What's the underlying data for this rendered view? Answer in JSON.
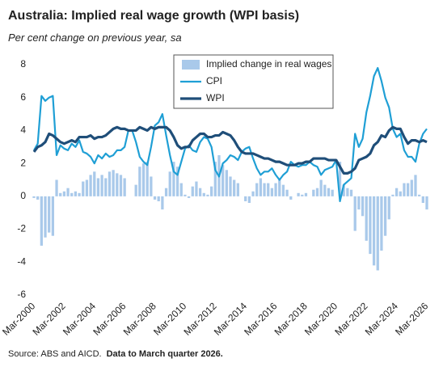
{
  "chart_data": {
    "type": "combo",
    "title": "Australia: Implied real wage growth (WPI basis)",
    "subtitle": "Per cent change on previous year, sa",
    "source": "Source: ABS and AICD.",
    "note": "Data to March quarter 2026.",
    "categories": [
      "Mar-2000",
      null,
      null,
      null,
      null,
      null,
      null,
      null,
      "Mar-2002",
      null,
      null,
      null,
      null,
      null,
      null,
      null,
      "Mar-2004",
      null,
      null,
      null,
      null,
      null,
      null,
      null,
      "Mar-2006",
      null,
      null,
      null,
      null,
      null,
      null,
      null,
      "Mar-2008",
      null,
      null,
      null,
      null,
      null,
      null,
      null,
      "Mar-2010",
      null,
      null,
      null,
      null,
      null,
      null,
      null,
      "Mar-2012",
      null,
      null,
      null,
      null,
      null,
      null,
      null,
      "Mar-2014",
      null,
      null,
      null,
      null,
      null,
      null,
      null,
      "Mar-2016",
      null,
      null,
      null,
      null,
      null,
      null,
      null,
      "Mar-2018",
      null,
      null,
      null,
      null,
      null,
      null,
      null,
      "Mar-2020",
      null,
      null,
      null,
      null,
      null,
      null,
      null,
      "Mar-2022",
      null,
      null,
      null,
      null,
      null,
      null,
      null,
      "Mar-2024",
      null,
      null,
      null,
      null,
      null,
      null,
      null,
      "Mar-2026"
    ],
    "ylim": [
      -6,
      8
    ],
    "yticks": [
      -6,
      -4,
      -2,
      0,
      2,
      4,
      6,
      8
    ],
    "series": [
      {
        "name": "Implied change in real wages",
        "type": "bar",
        "color": "#a9c9ea",
        "values": [
          -0.1,
          -0.2,
          -3.0,
          -2.5,
          -2.2,
          -2.4,
          1.0,
          0.2,
          0.3,
          0.5,
          0.2,
          0.3,
          0.2,
          0.9,
          1.0,
          1.3,
          1.5,
          1.1,
          1.3,
          1.1,
          1.5,
          1.6,
          1.4,
          1.3,
          1.1,
          0.0,
          0.0,
          0.7,
          1.8,
          2.0,
          2.1,
          1.2,
          -0.2,
          -0.3,
          -0.8,
          0.5,
          1.5,
          2.1,
          1.8,
          0.8,
          0.1,
          -0.1,
          0.6,
          0.9,
          0.5,
          0.2,
          0.1,
          0.6,
          2.1,
          2.5,
          1.9,
          1.6,
          1.2,
          1.0,
          0.8,
          0.0,
          -0.3,
          -0.4,
          0.3,
          0.8,
          1.1,
          0.8,
          0.8,
          0.5,
          0.8,
          1.1,
          0.7,
          0.4,
          -0.2,
          0.0,
          0.2,
          0.1,
          0.2,
          0.0,
          0.4,
          0.5,
          1.0,
          0.7,
          0.5,
          0.4,
          0.0,
          2.1,
          0.7,
          0.5,
          0.4,
          -2.1,
          -0.8,
          -1.2,
          -2.7,
          -3.5,
          -4.2,
          -4.5,
          -3.3,
          -2.4,
          -1.4,
          0.1,
          0.5,
          0.3,
          0.8,
          0.8,
          1.0,
          1.3,
          0.1,
          -0.4,
          -0.8
        ]
      },
      {
        "name": "CPI",
        "type": "line",
        "color": "#1f9fd5",
        "values": [
          2.8,
          3.2,
          6.1,
          5.8,
          6.0,
          6.1,
          2.5,
          3.1,
          2.9,
          2.8,
          3.2,
          3.0,
          3.4,
          2.7,
          2.6,
          2.4,
          2.0,
          2.5,
          2.3,
          2.6,
          2.4,
          2.5,
          2.8,
          2.8,
          3.0,
          4.0,
          4.0,
          3.3,
          2.4,
          2.1,
          1.9,
          3.0,
          4.3,
          4.5,
          5.0,
          3.7,
          2.5,
          1.5,
          1.3,
          2.1,
          2.9,
          3.1,
          2.8,
          2.7,
          3.3,
          3.6,
          3.5,
          3.0,
          1.6,
          1.2,
          2.0,
          2.2,
          2.5,
          2.4,
          2.2,
          2.7,
          2.9,
          3.0,
          2.3,
          1.7,
          1.3,
          1.5,
          1.5,
          1.7,
          1.3,
          1.0,
          1.3,
          1.5,
          2.1,
          1.9,
          1.8,
          1.9,
          1.9,
          2.1,
          1.9,
          1.8,
          1.3,
          1.6,
          1.7,
          1.8,
          2.2,
          -0.3,
          0.7,
          0.9,
          1.1,
          3.8,
          3.0,
          3.5,
          5.1,
          6.1,
          7.3,
          7.8,
          7.0,
          6.0,
          5.4,
          4.1,
          3.6,
          3.8,
          2.8,
          2.4,
          2.4,
          2.1,
          3.2,
          3.8,
          4.1
        ]
      },
      {
        "name": "WPI",
        "type": "line",
        "color": "#1f4e79",
        "values": [
          2.7,
          3.0,
          3.1,
          3.3,
          3.8,
          3.7,
          3.5,
          3.3,
          3.2,
          3.3,
          3.4,
          3.3,
          3.6,
          3.6,
          3.6,
          3.7,
          3.5,
          3.6,
          3.6,
          3.7,
          3.9,
          4.1,
          4.2,
          4.1,
          4.1,
          4.0,
          4.0,
          4.0,
          4.2,
          4.1,
          4.0,
          4.2,
          4.1,
          4.2,
          4.2,
          4.2,
          4.0,
          3.6,
          3.1,
          2.9,
          3.0,
          3.0,
          3.4,
          3.6,
          3.8,
          3.8,
          3.6,
          3.6,
          3.7,
          3.7,
          3.9,
          3.8,
          3.7,
          3.4,
          3.0,
          2.7,
          2.6,
          2.6,
          2.6,
          2.5,
          2.4,
          2.3,
          2.3,
          2.2,
          2.1,
          2.1,
          2.0,
          1.9,
          1.9,
          1.9,
          2.0,
          2.0,
          2.1,
          2.1,
          2.3,
          2.3,
          2.3,
          2.3,
          2.2,
          2.2,
          2.2,
          1.8,
          1.4,
          1.4,
          1.5,
          1.7,
          2.2,
          2.3,
          2.4,
          2.6,
          3.1,
          3.3,
          3.7,
          3.6,
          4.0,
          4.2,
          4.1,
          4.1,
          3.6,
          3.2,
          3.4,
          3.4,
          3.3,
          3.4,
          3.3
        ]
      }
    ]
  }
}
